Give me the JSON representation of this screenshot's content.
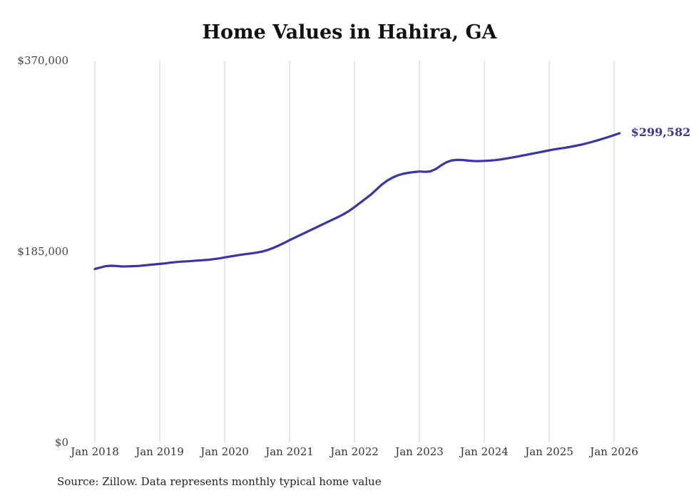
{
  "page": {
    "title": "Home Values in Hahira, GA",
    "source_note": "Source: Zillow. Data represents monthly typical home value"
  },
  "chart_data": {
    "type": "line",
    "title": "Home Values in Hahira, GA",
    "series_name": "Monthly typical home value",
    "unit": "USD",
    "ylim": [
      0,
      370000
    ],
    "grid": "vertical-only",
    "legend": "none",
    "line_color": "#3a35a4",
    "gridline_color": "#cccccc",
    "end_label": "$299,582",
    "latest_value": 299582,
    "y_ticks": [
      {
        "label": "$370,000",
        "value": 370000
      },
      {
        "label": "$185,000",
        "value": 185000
      },
      {
        "label": "$0",
        "value": 0
      }
    ],
    "x_tick_labels": [
      "Jan 2018",
      "Jan 2019",
      "Jan 2020",
      "Jan 2021",
      "Jan 2022",
      "Jan 2023",
      "Jan 2024",
      "Jan 2025",
      "Jan 2026"
    ],
    "x": [
      "2018-01",
      "2018-02",
      "2018-03",
      "2018-04",
      "2018-05",
      "2018-06",
      "2018-07",
      "2018-08",
      "2018-09",
      "2018-10",
      "2018-11",
      "2018-12",
      "2019-01",
      "2019-02",
      "2019-03",
      "2019-04",
      "2019-05",
      "2019-06",
      "2019-07",
      "2019-08",
      "2019-09",
      "2019-10",
      "2019-11",
      "2019-12",
      "2020-01",
      "2020-02",
      "2020-03",
      "2020-04",
      "2020-05",
      "2020-06",
      "2020-07",
      "2020-08",
      "2020-09",
      "2020-10",
      "2020-11",
      "2020-12",
      "2021-01",
      "2021-02",
      "2021-03",
      "2021-04",
      "2021-05",
      "2021-06",
      "2021-07",
      "2021-08",
      "2021-09",
      "2021-10",
      "2021-11",
      "2021-12",
      "2022-01",
      "2022-02",
      "2022-03",
      "2022-04",
      "2022-05",
      "2022-06",
      "2022-07",
      "2022-08",
      "2022-09",
      "2022-10",
      "2022-11",
      "2022-12",
      "2023-01",
      "2023-02",
      "2023-03",
      "2023-04",
      "2023-05",
      "2023-06",
      "2023-07",
      "2023-08",
      "2023-09",
      "2023-10",
      "2023-11",
      "2023-12",
      "2024-01",
      "2024-02",
      "2024-03",
      "2024-04",
      "2024-05",
      "2024-06",
      "2024-07",
      "2024-08",
      "2024-09",
      "2024-10",
      "2024-11",
      "2024-12",
      "2025-01",
      "2025-02",
      "2025-03",
      "2025-04",
      "2025-05",
      "2025-06",
      "2025-07",
      "2025-08",
      "2025-09",
      "2025-10",
      "2025-11",
      "2025-12",
      "2026-01",
      "2026-02"
    ],
    "values": [
      168000,
      169500,
      170800,
      171200,
      170900,
      170500,
      170600,
      170800,
      171000,
      171500,
      172000,
      172500,
      173000,
      173500,
      174200,
      174800,
      175200,
      175500,
      175800,
      176200,
      176600,
      177000,
      177600,
      178300,
      179300,
      180200,
      181000,
      181800,
      182500,
      183200,
      184000,
      185000,
      186500,
      188500,
      190800,
      193300,
      196000,
      198500,
      201000,
      203500,
      206000,
      208500,
      211000,
      213500,
      216000,
      218500,
      221200,
      224300,
      228000,
      232000,
      236000,
      240000,
      244800,
      249600,
      253500,
      256500,
      258800,
      260300,
      261300,
      262000,
      262500,
      262200,
      262600,
      264800,
      268400,
      271500,
      273300,
      273800,
      273600,
      273100,
      272700,
      272600,
      272800,
      273100,
      273500,
      274200,
      275000,
      275900,
      276900,
      277900,
      278900,
      279900,
      280900,
      282000,
      283000,
      284000,
      284800,
      285600,
      286500,
      287500,
      288600,
      289900,
      291300,
      292800,
      294400,
      296100,
      297800,
      299582
    ]
  }
}
